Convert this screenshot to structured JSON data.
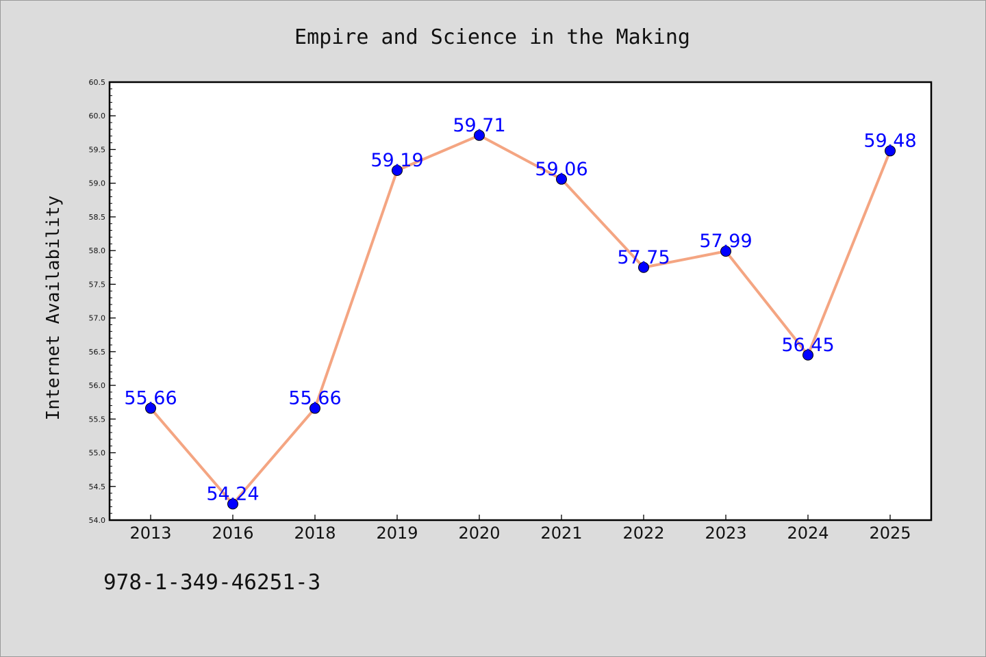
{
  "chart_data": {
    "type": "line",
    "title": "Empire and Science in the Making",
    "xlabel": "",
    "ylabel": "Internet Availability",
    "categories": [
      "2013",
      "2016",
      "2018",
      "2019",
      "2020",
      "2021",
      "2022",
      "2023",
      "2024",
      "2025"
    ],
    "series": [
      {
        "values": [
          55.66,
          54.24,
          55.66,
          59.19,
          59.71,
          59.06,
          57.75,
          57.99,
          56.45,
          59.48
        ],
        "data_labels": [
          "55.66",
          "54.24",
          "55.66",
          "59.19",
          "59.71",
          "59.06",
          "57.75",
          "57.99",
          "56.45",
          "59.48"
        ]
      }
    ],
    "ylim": [
      54.0,
      60.5
    ],
    "yticks": [
      "54.0",
      "54.5",
      "55.0",
      "55.5",
      "56.0",
      "56.5",
      "57.0",
      "57.5",
      "58.0",
      "58.5",
      "59.0",
      "59.5",
      "60.0",
      "60.5"
    ],
    "grid": false,
    "legend": "none",
    "colors": {
      "line": "#f4a582",
      "marker": "#0000ff",
      "data_label": "#0000ff",
      "plot_background": "#ffffff",
      "figure_background": "#dcdcdc"
    }
  },
  "footer_text": "978-1-349-46251-3"
}
